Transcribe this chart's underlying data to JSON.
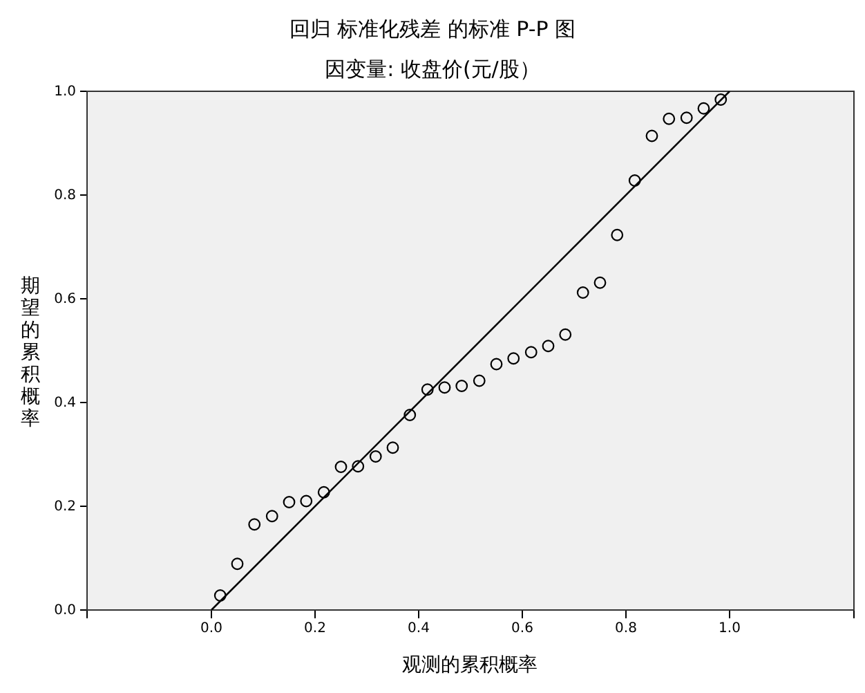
{
  "chart_data": {
    "type": "scatter",
    "title": "回归 标准化残差 的标准 P-P 图",
    "subtitle": "因变量: 收盘价(元/股）",
    "xlabel": "观测的累积概率",
    "ylabel": "期望的累积概率",
    "xlim": [
      -0.24,
      1.24
    ],
    "ylim": [
      0,
      1
    ],
    "xticks": [
      {
        "value": 0,
        "label": "0.0"
      },
      {
        "value": 0.2,
        "label": "0.2"
      },
      {
        "value": 0.4,
        "label": "0.4"
      },
      {
        "value": 0.6,
        "label": "0.6"
      },
      {
        "value": 0.8,
        "label": "0.8"
      },
      {
        "value": 1,
        "label": "1.0"
      }
    ],
    "yticks": [
      {
        "value": 0,
        "label": "0.0"
      },
      {
        "value": 0.2,
        "label": "0.2"
      },
      {
        "value": 0.4,
        "label": "0.4"
      },
      {
        "value": 0.6,
        "label": "0.6"
      },
      {
        "value": 0.8,
        "label": "0.8"
      },
      {
        "value": 1,
        "label": "1.0"
      }
    ],
    "grid": false,
    "series": [
      {
        "marker": "circle",
        "color": "#000000",
        "x": [
          0.017,
          0.05,
          0.083,
          0.117,
          0.15,
          0.183,
          0.217,
          0.25,
          0.283,
          0.317,
          0.35,
          0.383,
          0.417,
          0.45,
          0.483,
          0.517,
          0.55,
          0.583,
          0.617,
          0.65,
          0.683,
          0.717,
          0.75,
          0.783,
          0.817,
          0.85,
          0.883,
          0.917,
          0.95,
          0.983
        ],
        "values": [
          0.028,
          0.089,
          0.165,
          0.181,
          0.208,
          0.21,
          0.227,
          0.276,
          0.277,
          0.296,
          0.313,
          0.376,
          0.425,
          0.429,
          0.432,
          0.442,
          0.474,
          0.485,
          0.497,
          0.509,
          0.531,
          0.612,
          0.631,
          0.723,
          0.828,
          0.914,
          0.947,
          0.949,
          0.967,
          0.984
        ]
      },
      {
        "type": "line",
        "color": "#000000",
        "x": [
          0,
          1
        ],
        "values": [
          0,
          1
        ]
      }
    ]
  }
}
